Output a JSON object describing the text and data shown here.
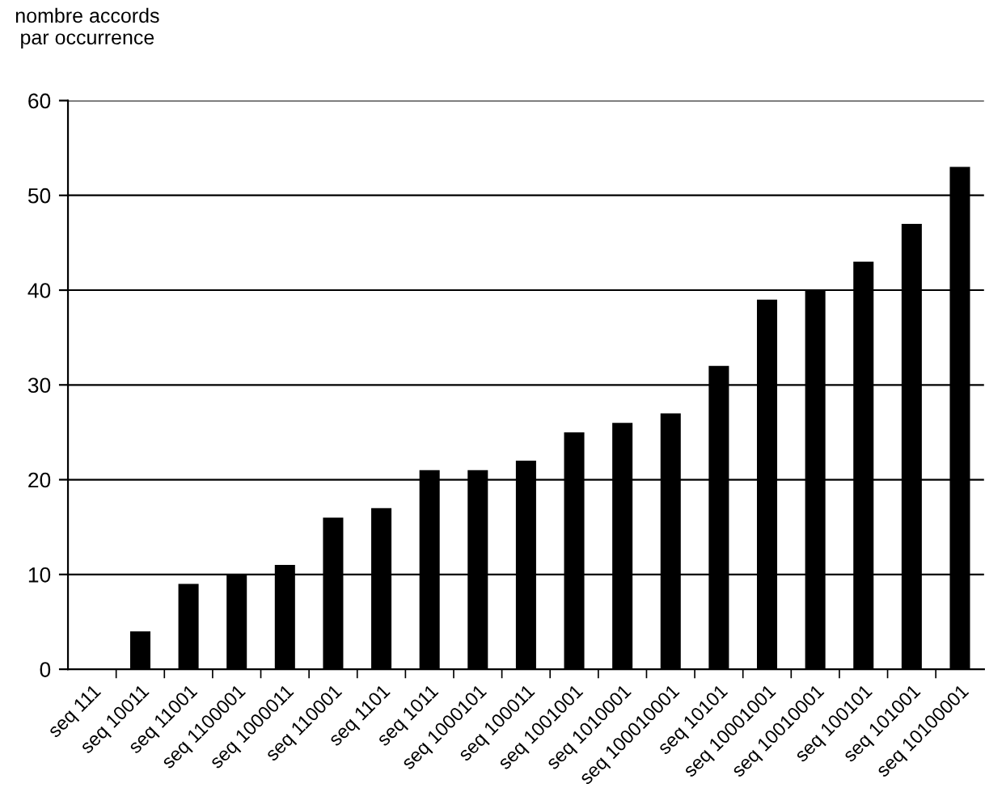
{
  "chart_data": {
    "type": "bar",
    "ylabel": "nombre accords\npar occurrence",
    "categories": [
      "seq 111",
      "seq 10011",
      "seq 11001",
      "seq 1100001",
      "seq 1000011",
      "seq 110001",
      "seq 1101",
      "seq 1011",
      "seq 1000101",
      "seq 100011",
      "seq 1001001",
      "seq 1010001",
      "seq 100010001",
      "seq 10101",
      "seq 10001001",
      "seq 10010001",
      "seq 100101",
      "seq 101001",
      "seq 10100001"
    ],
    "values": [
      0,
      4,
      9,
      10,
      11,
      16,
      17,
      21,
      21,
      22,
      25,
      26,
      27,
      32,
      39,
      40,
      43,
      47,
      53
    ],
    "color": "#000000",
    "ylim": [
      0,
      60
    ],
    "yticks": [
      0,
      10,
      20,
      30,
      40,
      50,
      60
    ],
    "grid": "y",
    "legend": false
  }
}
